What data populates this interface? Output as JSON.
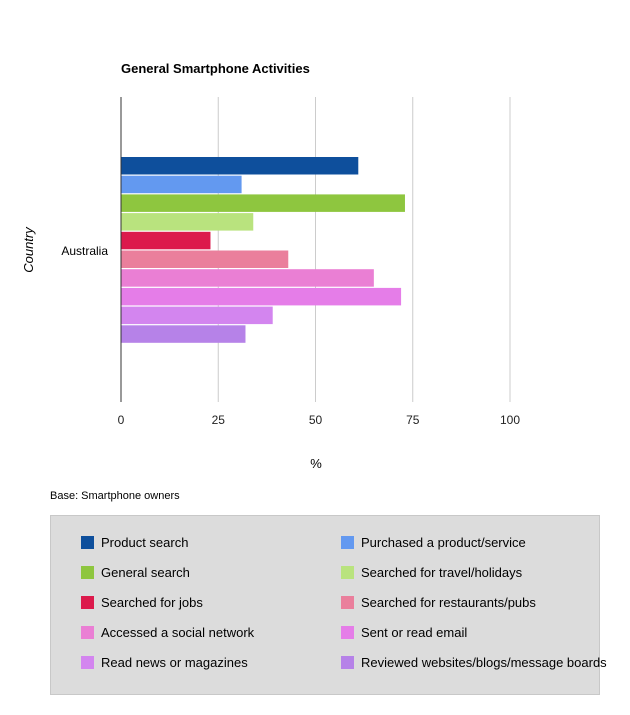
{
  "chart_data": {
    "type": "bar",
    "orientation": "horizontal",
    "title": "General Smartphone Activities",
    "xlabel": "%",
    "ylabel": "Country",
    "categories": [
      "Australia"
    ],
    "xlim": [
      0,
      100
    ],
    "xticks": [
      "0",
      "25",
      "50",
      "75",
      "100"
    ],
    "grid": true,
    "legend_position": "bottom",
    "note": "Base: Smartphone owners",
    "series": [
      {
        "name": "Product search",
        "values": [
          61
        ],
        "color": "#0e4f9c"
      },
      {
        "name": "Purchased a product/service",
        "values": [
          31
        ],
        "color": "#6399f0"
      },
      {
        "name": "General search",
        "values": [
          73
        ],
        "color": "#8ec63f"
      },
      {
        "name": "Searched for travel/holidays",
        "values": [
          34
        ],
        "color": "#b9e37e"
      },
      {
        "name": "Searched for jobs",
        "values": [
          23
        ],
        "color": "#dc1a4c"
      },
      {
        "name": "Searched for restaurants/pubs",
        "values": [
          43
        ],
        "color": "#ea7f9c"
      },
      {
        "name": "Accessed a social network",
        "values": [
          65
        ],
        "color": "#ea7fd4"
      },
      {
        "name": "Sent or read email",
        "values": [
          72
        ],
        "color": "#e57de8"
      },
      {
        "name": "Read news or magazines",
        "values": [
          39
        ],
        "color": "#d385ef"
      },
      {
        "name": "Reviewed websites/blogs/message boards",
        "values": [
          32
        ],
        "color": "#b682e8"
      }
    ]
  }
}
